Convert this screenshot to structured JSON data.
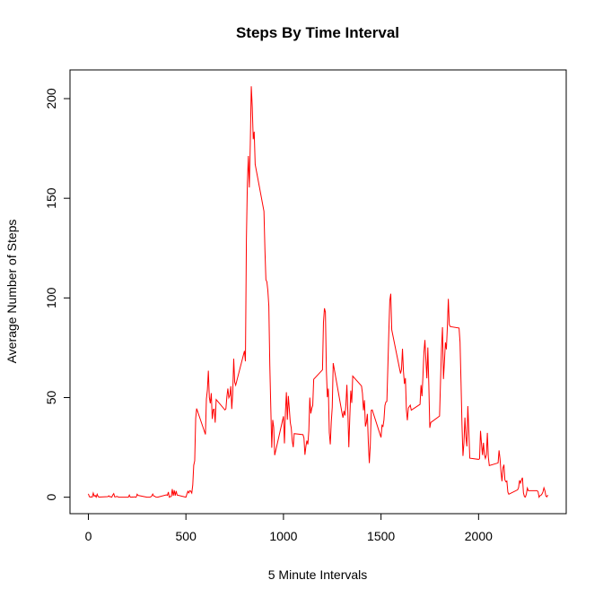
{
  "chart_data": {
    "type": "line",
    "title": "Steps By Time Interval",
    "xlabel": "5 Minute Intervals",
    "ylabel": "Average Number of Steps",
    "x": [
      0,
      5,
      10,
      15,
      20,
      25,
      30,
      35,
      40,
      45,
      50,
      55,
      100,
      105,
      110,
      115,
      120,
      125,
      130,
      135,
      140,
      145,
      150,
      155,
      200,
      205,
      210,
      215,
      220,
      225,
      230,
      235,
      240,
      245,
      250,
      255,
      300,
      305,
      310,
      315,
      320,
      325,
      330,
      335,
      340,
      345,
      350,
      355,
      400,
      405,
      410,
      415,
      420,
      425,
      430,
      435,
      440,
      445,
      450,
      455,
      500,
      505,
      510,
      515,
      520,
      525,
      530,
      535,
      540,
      545,
      550,
      555,
      600,
      605,
      610,
      615,
      620,
      625,
      630,
      635,
      640,
      645,
      650,
      655,
      700,
      705,
      710,
      715,
      720,
      725,
      730,
      735,
      740,
      745,
      750,
      755,
      800,
      805,
      810,
      815,
      820,
      825,
      830,
      835,
      840,
      845,
      850,
      855,
      900,
      905,
      910,
      915,
      920,
      925,
      930,
      935,
      940,
      945,
      950,
      955,
      1000,
      1005,
      1010,
      1015,
      1020,
      1025,
      1030,
      1035,
      1040,
      1045,
      1050,
      1055,
      1100,
      1105,
      1110,
      1115,
      1120,
      1125,
      1130,
      1135,
      1140,
      1145,
      1150,
      1155,
      1200,
      1205,
      1210,
      1215,
      1220,
      1225,
      1230,
      1235,
      1240,
      1245,
      1250,
      1255,
      1300,
      1305,
      1310,
      1315,
      1320,
      1325,
      1330,
      1335,
      1340,
      1345,
      1350,
      1355,
      1400,
      1405,
      1410,
      1415,
      1420,
      1425,
      1430,
      1435,
      1440,
      1445,
      1450,
      1455,
      1500,
      1505,
      1510,
      1515,
      1520,
      1525,
      1530,
      1535,
      1540,
      1545,
      1550,
      1555,
      1600,
      1605,
      1610,
      1615,
      1620,
      1625,
      1630,
      1635,
      1640,
      1645,
      1650,
      1655,
      1700,
      1705,
      1710,
      1715,
      1720,
      1725,
      1730,
      1735,
      1740,
      1745,
      1750,
      1755,
      1800,
      1805,
      1810,
      1815,
      1820,
      1825,
      1830,
      1835,
      1840,
      1845,
      1850,
      1855,
      1900,
      1905,
      1910,
      1915,
      1920,
      1925,
      1930,
      1935,
      1940,
      1945,
      1950,
      1955,
      2000,
      2005,
      2010,
      2015,
      2020,
      2025,
      2030,
      2035,
      2040,
      2045,
      2050,
      2055,
      2100,
      2105,
      2110,
      2115,
      2120,
      2125,
      2130,
      2135,
      2140,
      2145,
      2150,
      2155,
      2200,
      2205,
      2210,
      2215,
      2220,
      2225,
      2230,
      2235,
      2240,
      2245,
      2250,
      2255,
      2300,
      2305,
      2310,
      2315,
      2320,
      2325,
      2330,
      2335,
      2340,
      2345,
      2350,
      2355
    ],
    "series": [
      {
        "color": "#ff0000",
        "values": [
          1.7,
          0.3,
          0.1,
          0.2,
          0.1,
          2.1,
          0.5,
          0.9,
          0,
          1.5,
          0.3,
          0.1,
          0.3,
          0.7,
          0.2,
          0.3,
          0,
          1.1,
          1.8,
          0.2,
          0.2,
          0.4,
          0.3,
          0,
          0,
          0,
          1.1,
          0,
          0,
          0.1,
          0,
          0.2,
          0,
          0,
          1.5,
          0.9,
          0,
          0,
          0,
          0,
          0.2,
          0.6,
          1.6,
          0.6,
          0.5,
          0.1,
          0,
          0,
          1.2,
          0.9,
          2.6,
          0,
          0.3,
          0.4,
          4.1,
          0.7,
          3.5,
          0.8,
          3.1,
          1.1,
          0,
          1.6,
          3,
          2.2,
          3.3,
          3,
          2.1,
          6.1,
          16,
          18.3,
          39.5,
          44.5,
          31.5,
          49.3,
          53.8,
          63.5,
          50,
          47.1,
          52.2,
          39.3,
          44,
          44.2,
          37.4,
          49,
          43.8,
          44.4,
          50.5,
          54.5,
          49.9,
          51,
          55.7,
          44.3,
          52.3,
          69.5,
          57.8,
          56.2,
          73.4,
          68.2,
          129.4,
          157.5,
          171.2,
          155.4,
          177.3,
          206.2,
          195.9,
          179.6,
          183.4,
          167,
          143.5,
          124,
          109.1,
          108.1,
          103.7,
          96,
          66.2,
          45.2,
          24.8,
          38.8,
          35,
          21.1,
          40.6,
          27,
          42.4,
          52.7,
          38.9,
          50.8,
          44.3,
          37.4,
          34.7,
          28.3,
          25.1,
          31.9,
          31.4,
          29.7,
          21.3,
          25.5,
          28.4,
          26.5,
          33.4,
          50,
          42,
          44.6,
          46,
          59.2,
          63.9,
          87.7,
          94.8,
          92.8,
          63.4,
          50.2,
          54.5,
          32.4,
          26.5,
          37.7,
          45.1,
          67.3,
          42.3,
          39.9,
          43.3,
          41,
          46.2,
          56.4,
          42.8,
          25.1,
          40,
          53.5,
          47.3,
          60.8,
          55.8,
          52,
          43.6,
          48.7,
          35.5,
          37.5,
          41.8,
          27.5,
          17.1,
          26.1,
          43.6,
          43.8,
          30,
          36.1,
          35.5,
          38.8,
          46,
          47.8,
          48.1,
          65.3,
          82.9,
          98.7,
          102.1,
          84,
          62.1,
          64.1,
          74.5,
          63.2,
          56.9,
          59.8,
          43.9,
          38.6,
          44.7,
          45.5,
          46.2,
          43.7,
          46.6,
          56.3,
          50.7,
          61.2,
          72.7,
          78.9,
          68.9,
          59.7,
          75.1,
          56.5,
          34.8,
          37.5,
          40.7,
          58,
          74.7,
          85.3,
          59.3,
          67.8,
          77.7,
          74.2,
          85.3,
          99.5,
          86.6,
          85.6,
          84.9,
          77.8,
          58,
          36.3,
          20.7,
          27.4,
          40,
          30.2,
          25.5,
          45.7,
          33.5,
          19.6,
          19,
          19.3,
          33.3,
          26.8,
          21.2,
          27.3,
          21.3,
          19.5,
          21.3,
          32.3,
          20.2,
          15.9,
          17.2,
          23.5,
          19.2,
          12.5,
          8,
          14.7,
          16.3,
          8.7,
          7.8,
          8.1,
          2.6,
          1.5,
          3.7,
          4.8,
          8.5,
          7.1,
          8.7,
          9.8,
          2.2,
          0.3,
          0.1,
          1.6,
          4.6,
          3.3,
          3.3,
          2.8,
          0,
          0.8,
          1,
          1.6,
          2.6,
          4.7,
          3.3,
          0.6,
          0.2,
          1.1
        ]
      }
    ],
    "xlim": [
      -94.2,
      2449.2
    ],
    "xticks": [
      0,
      500,
      1000,
      1500,
      2000
    ],
    "ylim": [
      -8.25,
      214.4
    ],
    "yticks": [
      0,
      50,
      100,
      150,
      200
    ]
  }
}
